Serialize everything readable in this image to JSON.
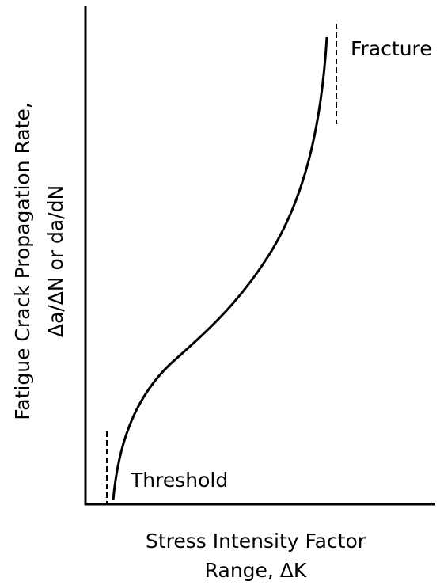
{
  "axes": {
    "y_label": [
      "Fatigue Crack Propagation Rate,",
      "Δa/ΔN or da/dN"
    ],
    "x_label": [
      "Stress Intensity Factor",
      "Range, ΔK"
    ]
  },
  "annotations": {
    "threshold": "Threshold",
    "fracture": "Fracture"
  }
}
